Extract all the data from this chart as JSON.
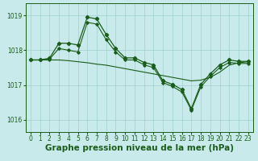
{
  "title": "Graphe pression niveau de la mer (hPa)",
  "background_color": "#c8eaea",
  "grid_color": "#a0d0d0",
  "line_color": "#1a5c1a",
  "ylim": [
    1015.65,
    1019.35
  ],
  "yticks": [
    1016,
    1017,
    1018,
    1019
  ],
  "xlim": [
    -0.5,
    23.5
  ],
  "xticks": [
    0,
    1,
    2,
    3,
    4,
    5,
    6,
    7,
    8,
    9,
    10,
    11,
    12,
    13,
    14,
    15,
    16,
    17,
    18,
    19,
    20,
    21,
    22,
    23
  ],
  "series1_x": [
    0,
    1,
    2,
    3,
    4,
    5,
    6,
    7,
    8,
    9,
    10,
    11,
    12,
    13,
    14,
    15,
    16,
    17,
    18,
    19,
    20,
    21,
    22,
    23
  ],
  "series1_y": [
    1017.72,
    1017.72,
    1017.77,
    1018.2,
    1018.2,
    1018.15,
    1018.95,
    1018.9,
    1018.45,
    1018.05,
    1017.78,
    1017.78,
    1017.65,
    1017.58,
    1017.12,
    1017.02,
    1016.87,
    1016.32,
    1017.02,
    1017.32,
    1017.58,
    1017.72,
    1017.68,
    1017.68
  ],
  "series2_x": [
    0,
    1,
    2,
    3,
    4,
    5,
    6,
    7,
    8,
    9,
    10,
    11,
    12,
    13,
    14,
    15,
    16,
    17,
    18,
    19,
    20,
    21,
    22,
    23
  ],
  "series2_y": [
    1017.72,
    1017.72,
    1017.72,
    1017.72,
    1017.7,
    1017.67,
    1017.64,
    1017.6,
    1017.57,
    1017.52,
    1017.47,
    1017.42,
    1017.37,
    1017.32,
    1017.27,
    1017.22,
    1017.17,
    1017.12,
    1017.14,
    1017.22,
    1017.37,
    1017.57,
    1017.64,
    1017.67
  ],
  "series3_x": [
    0,
    1,
    2,
    3,
    4,
    5,
    6,
    7,
    8,
    9,
    10,
    11,
    12,
    13,
    14,
    15,
    16,
    17,
    18,
    19,
    20,
    21,
    22,
    23
  ],
  "series3_y": [
    1017.72,
    1017.72,
    1017.74,
    1018.05,
    1018.0,
    1017.95,
    1018.8,
    1018.75,
    1018.3,
    1017.95,
    1017.72,
    1017.72,
    1017.58,
    1017.5,
    1017.07,
    1016.96,
    1016.8,
    1016.28,
    1016.95,
    1017.25,
    1017.5,
    1017.65,
    1017.62,
    1017.62
  ],
  "title_fontsize": 7.5,
  "tick_fontsize": 5.5
}
